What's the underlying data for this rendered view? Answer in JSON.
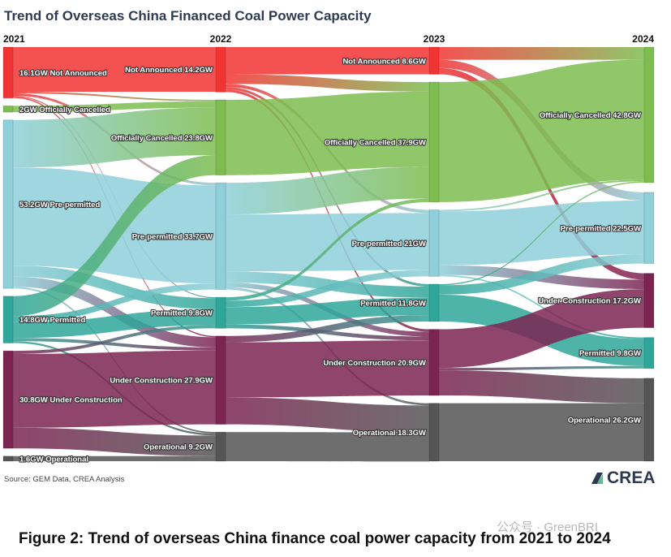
{
  "title": "Trend of Overseas China Financed Coal Power Capacity",
  "source": "Source: GEM Data, CREA Analysis",
  "logo": "CREA",
  "watermark": "公众号 · GreenBRI",
  "caption": "Figure 2: Trend of overseas China finance coal power capacity from 2021 to 2024",
  "chart_data": {
    "type": "sankey",
    "title": "Trend of Overseas China Financed Coal Power Capacity",
    "unit": "GW",
    "columns": [
      "2021",
      "2022",
      "2023",
      "2024"
    ],
    "colors": {
      "Not Announced": "#f23333",
      "Officially Cancelled": "#7dbd4f",
      "Pre-permitted": "#8fcfd9",
      "Permitted": "#2fa69a",
      "Under Construction": "#7b2452",
      "Operational": "#555555"
    },
    "nodes": [
      [
        {
          "name": "Not Announced",
          "value": 16.1,
          "label": "16.1GW Not Announced"
        },
        {
          "name": "Officially Cancelled",
          "value": 2,
          "label": "2GW Officially Cancelled"
        },
        {
          "name": "Pre-permitted",
          "value": 53.2,
          "label": "53.2GW Pre-permitted"
        },
        {
          "name": "Permitted",
          "value": 14.8,
          "label": "14.8GW Permitted"
        },
        {
          "name": "Under Construction",
          "value": 30.8,
          "label": "30.8GW Under Construction"
        },
        {
          "name": "Operational",
          "value": 1.6,
          "label": "1.6GW Operational"
        }
      ],
      [
        {
          "name": "Not Announced",
          "value": 14.2,
          "label": "Not Announced 14.2GW"
        },
        {
          "name": "Officially Cancelled",
          "value": 23.8,
          "label": "Officially Cancelled 23.8GW"
        },
        {
          "name": "Pre-permitted",
          "value": 33.7,
          "label": "Pre-permitted 33.7GW"
        },
        {
          "name": "Permitted",
          "value": 9.8,
          "label": "Permitted 9.8GW"
        },
        {
          "name": "Under Construction",
          "value": 27.9,
          "label": "Under Construction 27.9GW"
        },
        {
          "name": "Operational",
          "value": 9.2,
          "label": "Operational 9.2GW"
        }
      ],
      [
        {
          "name": "Not Announced",
          "value": 8.6,
          "label": "Not Announced 8.6GW"
        },
        {
          "name": "Officially Cancelled",
          "value": 37.9,
          "label": "Officially Cancelled 37.9GW"
        },
        {
          "name": "Pre-permitted",
          "value": 21,
          "label": "Pre-permitted 21GW"
        },
        {
          "name": "Permitted",
          "value": 11.8,
          "label": "Permitted 11.8GW"
        },
        {
          "name": "Under Construction",
          "value": 20.9,
          "label": "Under Construction 20.9GW"
        },
        {
          "name": "Operational",
          "value": 18.3,
          "label": "Operational 18.3GW"
        }
      ],
      [
        {
          "name": "Officially Cancelled",
          "value": 42.8,
          "label": "Officially Cancelled 42.8GW"
        },
        {
          "name": "Pre-permitted",
          "value": 22.5,
          "label": "Pre-permitted 22.5GW"
        },
        {
          "name": "Under Construction",
          "value": 17.2,
          "label": "Under Construction 17.2GW"
        },
        {
          "name": "Permitted",
          "value": 9.8,
          "label": "Permitted 9.8GW"
        },
        {
          "name": "Operational",
          "value": 26.2,
          "label": "Operational 26.2GW"
        }
      ]
    ],
    "links": [
      [
        [
          0,
          0,
          14.1
        ],
        [
          0,
          1,
          0.5
        ],
        [
          0,
          2,
          0.8
        ],
        [
          0,
          3,
          0.3
        ],
        [
          0,
          4,
          0.4
        ],
        [
          1,
          1,
          2
        ],
        [
          2,
          1,
          15
        ],
        [
          2,
          2,
          31
        ],
        [
          2,
          3,
          3.5
        ],
        [
          2,
          4,
          3.2
        ],
        [
          2,
          5,
          0.5
        ],
        [
          3,
          1,
          6.3
        ],
        [
          3,
          2,
          1.9
        ],
        [
          3,
          3,
          5
        ],
        [
          3,
          4,
          1
        ],
        [
          3,
          5,
          0.6
        ],
        [
          4,
          3,
          1
        ],
        [
          4,
          4,
          23.3
        ],
        [
          4,
          5,
          6.5
        ],
        [
          5,
          5,
          1.6
        ]
      ],
      [
        [
          0,
          0,
          8.6
        ],
        [
          0,
          1,
          3
        ],
        [
          0,
          2,
          1
        ],
        [
          0,
          3,
          0.8
        ],
        [
          0,
          4,
          0.8
        ],
        [
          1,
          1,
          23.8
        ],
        [
          2,
          1,
          10
        ],
        [
          2,
          2,
          18
        ],
        [
          2,
          3,
          3.5
        ],
        [
          2,
          4,
          1.5
        ],
        [
          2,
          5,
          0.7
        ],
        [
          3,
          1,
          1.1
        ],
        [
          3,
          2,
          2
        ],
        [
          3,
          3,
          5.5
        ],
        [
          3,
          4,
          1.2
        ],
        [
          4,
          3,
          2
        ],
        [
          4,
          4,
          17.4
        ],
        [
          4,
          5,
          8.5
        ],
        [
          5,
          5,
          9.2
        ]
      ],
      [
        [
          0,
          0,
          4
        ],
        [
          0,
          1,
          2.6
        ],
        [
          0,
          2,
          2
        ],
        [
          1,
          0,
          37.9
        ],
        [
          2,
          0,
          0.5
        ],
        [
          2,
          1,
          17
        ],
        [
          2,
          2,
          3
        ],
        [
          2,
          3,
          0.5
        ],
        [
          3,
          0,
          0.4
        ],
        [
          3,
          1,
          2.9
        ],
        [
          3,
          3,
          8.5
        ],
        [
          4,
          2,
          12.2
        ],
        [
          4,
          3,
          0.8
        ],
        [
          4,
          4,
          7.9
        ],
        [
          5,
          4,
          18.3
        ]
      ]
    ]
  }
}
